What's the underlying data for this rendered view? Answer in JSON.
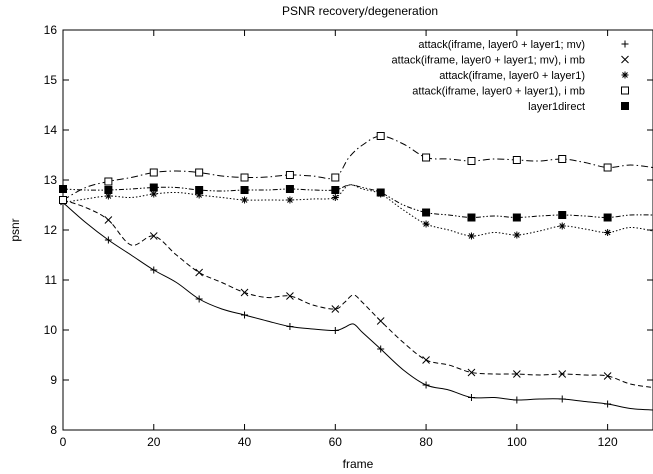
{
  "chart_data": {
    "type": "line",
    "title": "PSNR recovery/degeneration",
    "xlabel": "frame",
    "ylabel": "psnr",
    "xlim": [
      0,
      130
    ],
    "ylim": [
      8,
      16
    ],
    "xticks": [
      0,
      20,
      40,
      60,
      80,
      100,
      120
    ],
    "yticks": [
      8,
      9,
      10,
      11,
      12,
      13,
      14,
      15,
      16
    ],
    "grid": false,
    "legend": "top-right",
    "series": [
      {
        "name": "attack(iframe, layer0 + layer1; mv)",
        "line_style": "solid",
        "marker": "plus",
        "x": [
          0,
          5,
          10,
          15,
          20,
          25,
          30,
          35,
          40,
          45,
          50,
          55,
          60,
          62,
          64,
          66,
          70,
          75,
          80,
          85,
          90,
          95,
          100,
          105,
          110,
          115,
          120,
          125,
          130
        ],
        "y": [
          12.55,
          12.15,
          11.8,
          11.5,
          11.2,
          10.95,
          10.62,
          10.42,
          10.3,
          10.18,
          10.07,
          10.02,
          9.99,
          10.05,
          10.12,
          9.95,
          9.62,
          9.2,
          8.9,
          8.8,
          8.65,
          8.65,
          8.6,
          8.62,
          8.62,
          8.57,
          8.52,
          8.43,
          8.4
        ]
      },
      {
        "name": "attack(iframe, layer0 + layer1; mv), i mb",
        "line_style": "dashed",
        "marker": "cross",
        "x": [
          0,
          5,
          10,
          15,
          20,
          25,
          30,
          35,
          40,
          45,
          50,
          55,
          60,
          62,
          64,
          66,
          70,
          75,
          80,
          85,
          90,
          95,
          100,
          105,
          110,
          115,
          120,
          125,
          130
        ],
        "y": [
          12.6,
          12.45,
          12.2,
          11.7,
          11.88,
          11.5,
          11.15,
          10.95,
          10.75,
          10.65,
          10.68,
          10.5,
          10.42,
          10.55,
          10.7,
          10.55,
          10.18,
          9.75,
          9.4,
          9.3,
          9.15,
          9.12,
          9.12,
          9.1,
          9.12,
          9.1,
          9.08,
          8.92,
          8.85
        ]
      },
      {
        "name": "attack(iframe, layer0 + layer1)",
        "line_style": "dotted",
        "marker": "asterisk",
        "x": [
          0,
          5,
          10,
          15,
          20,
          25,
          30,
          35,
          40,
          45,
          50,
          55,
          60,
          63,
          66,
          70,
          75,
          80,
          85,
          90,
          95,
          100,
          105,
          110,
          115,
          120,
          125,
          130
        ],
        "y": [
          12.55,
          12.62,
          12.68,
          12.65,
          12.72,
          12.75,
          12.7,
          12.65,
          12.6,
          12.6,
          12.6,
          12.62,
          12.65,
          12.9,
          12.82,
          12.72,
          12.4,
          12.12,
          12.0,
          11.88,
          11.95,
          11.9,
          11.98,
          12.08,
          12.02,
          11.95,
          12.05,
          11.98
        ]
      },
      {
        "name": "attack(iframe, layer0 + layer1), i mb",
        "line_style": "dash-dot",
        "marker": "open-square",
        "x": [
          0,
          5,
          10,
          15,
          20,
          25,
          30,
          35,
          40,
          45,
          50,
          55,
          60,
          63,
          66,
          70,
          75,
          80,
          85,
          90,
          95,
          100,
          105,
          110,
          115,
          120,
          125,
          130
        ],
        "y": [
          12.6,
          12.85,
          12.97,
          13.05,
          13.15,
          13.18,
          13.15,
          13.08,
          13.05,
          13.06,
          13.1,
          13.08,
          13.05,
          13.45,
          13.7,
          13.88,
          13.72,
          13.45,
          13.42,
          13.38,
          13.42,
          13.4,
          13.38,
          13.42,
          13.35,
          13.25,
          13.3,
          13.25
        ]
      },
      {
        "name": "layer1direct",
        "line_style": "dash-dot-dot",
        "marker": "filled-square",
        "x": [
          0,
          5,
          10,
          15,
          20,
          25,
          30,
          35,
          40,
          45,
          50,
          55,
          60,
          63,
          66,
          70,
          75,
          80,
          85,
          90,
          95,
          100,
          105,
          110,
          115,
          120,
          125,
          130
        ],
        "y": [
          12.82,
          12.8,
          12.8,
          12.82,
          12.85,
          12.85,
          12.8,
          12.78,
          12.8,
          12.8,
          12.82,
          12.8,
          12.8,
          12.9,
          12.85,
          12.75,
          12.5,
          12.35,
          12.3,
          12.25,
          12.28,
          12.25,
          12.28,
          12.3,
          12.28,
          12.25,
          12.3,
          12.3
        ]
      }
    ]
  }
}
